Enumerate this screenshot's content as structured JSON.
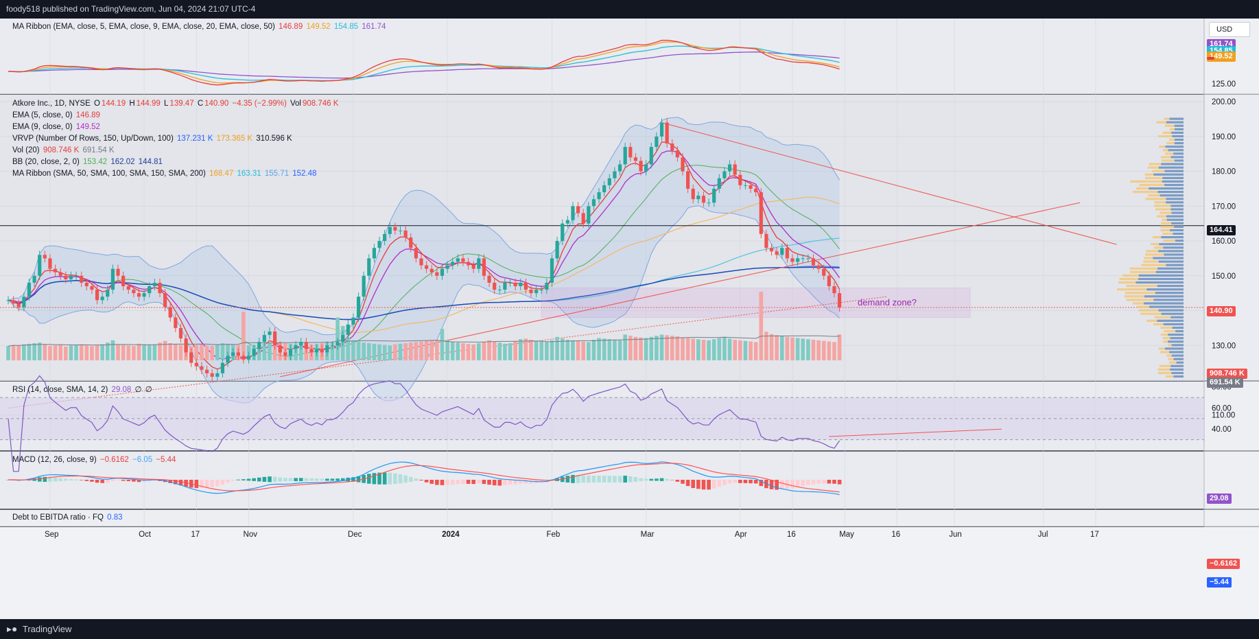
{
  "header": {
    "publisher": "foody518 published on TradingView.com, Jun 04, 2024 21:07 UTC-4"
  },
  "footer": {
    "brand": "TradingView"
  },
  "currency_button": "USD",
  "legends": {
    "ma_ribbon_ema": {
      "title": "MA Ribbon (EMA, close, 5, EMA, close, 9, EMA, close, 20, EMA, close, 50)",
      "v1": "146.89",
      "v2": "149.52",
      "v3": "154.85",
      "v4": "161.74"
    },
    "symbol": {
      "title": "Atkore Inc., 1D, NYSE",
      "o_lbl": "O",
      "o": "144.19",
      "h_lbl": "H",
      "h": "144.99",
      "l_lbl": "L",
      "l": "139.47",
      "c_lbl": "C",
      "c": "140.90",
      "chg": "−4.35 (−2.99%)",
      "vol_lbl": "Vol",
      "vol": "908.746 K"
    },
    "ema5": {
      "title": "EMA (5, close, 0)",
      "v": "146.89"
    },
    "ema9": {
      "title": "EMA (9, close, 0)",
      "v": "149.52"
    },
    "vrvp": {
      "title": "VRVP (Number Of Rows, 150, Up/Down, 100)",
      "v1": "137.231 K",
      "v2": "173.365 K",
      "v3": "310.596 K"
    },
    "vol20": {
      "title": "Vol (20)",
      "v1": "908.746 K",
      "v2": "691.54 K"
    },
    "bb": {
      "title": "BB (20, close, 2, 0)",
      "v1": "153.42",
      "v2": "162.02",
      "v3": "144.81"
    },
    "ma_ribbon_sma": {
      "title": "MA Ribbon (SMA, 50, SMA, 100, SMA, 150, SMA, 200)",
      "v1": "168.47",
      "v2": "163.31",
      "v3": "155.71",
      "v4": "152.48"
    },
    "rsi": {
      "title": "RSI (14, close, SMA, 14, 2)",
      "v1": "29.08",
      "v2": "∅",
      "v3": "∅"
    },
    "macd": {
      "title": "MACD (12, 26, close, 9)",
      "v1": "−0.6162",
      "v2": "−6.05",
      "v3": "−5.44"
    },
    "debt": {
      "title": "Debt to EBITDA ratio · FQ",
      "v": "0.83"
    }
  },
  "annotation": "demand zone?",
  "axis_tags": {
    "top_161": "161.74",
    "top_154": "154.85",
    "top_149": "149.52",
    "top_146": "146.89",
    "main_164": "164.41",
    "main_140": "140.90",
    "vol_908": "908.746 K",
    "vol_691": "691.54 K",
    "rsi_29": "29.08",
    "macd_0616": "−0.6162",
    "macd_544": "−5.44"
  },
  "colors": {
    "up": "#26a69a",
    "down": "#ef5350",
    "bg_pane": "#e9ebf0",
    "grid": "#d6d9e0"
  },
  "chart_data": [
    {
      "type": "line",
      "title": "MA Ribbon (EMA, close, 5, EMA, close, 9, EMA, close, 20, EMA, close, 50)",
      "y_ticks": [
        "125.00"
      ],
      "series": [
        {
          "name": "EMA 5",
          "last": 146.89
        },
        {
          "name": "EMA 9",
          "last": 149.52
        },
        {
          "name": "EMA 20",
          "last": 154.85
        },
        {
          "name": "EMA 50",
          "last": 161.74
        }
      ]
    },
    {
      "type": "candlestick",
      "title": "Atkore Inc., 1D, NYSE",
      "y_ticks": [
        "200.00",
        "190.00",
        "180.00",
        "170.00",
        "160.00",
        "150.00",
        "140.00",
        "130.00",
        "120.00",
        "110.00"
      ],
      "ylim": [
        106,
        202
      ],
      "x_ticks": [
        "Sep",
        "Oct",
        "17",
        "Nov",
        "Dec",
        "2024",
        "Feb",
        "Mar",
        "Apr",
        "16",
        "May",
        "16",
        "Jun",
        "Jul",
        "17"
      ],
      "x_index_of_ticks": [
        8,
        26,
        36,
        46,
        66,
        84,
        104,
        122,
        140,
        150,
        160,
        170,
        181,
        198,
        208
      ],
      "closes": [
        143,
        142,
        141,
        144,
        148,
        150,
        156,
        155,
        152,
        151,
        150,
        149,
        150,
        150,
        148,
        147,
        146,
        143,
        144,
        146,
        152,
        150,
        147,
        146,
        145,
        144,
        145,
        147,
        148,
        145,
        141,
        138,
        135,
        132,
        128,
        125,
        124,
        123,
        122,
        121,
        122,
        125,
        127,
        128,
        127,
        126,
        127,
        129,
        131,
        133,
        134,
        130,
        128,
        127,
        129,
        130,
        131,
        129,
        128,
        129,
        128,
        130,
        130,
        131,
        133,
        136,
        138,
        144,
        150,
        155,
        158,
        160,
        162,
        164,
        163,
        163,
        161,
        158,
        155,
        153,
        152,
        151,
        150,
        152,
        153,
        154,
        155,
        154,
        153,
        152,
        155,
        150,
        148,
        146,
        146,
        148,
        148,
        147,
        148,
        146,
        145,
        146,
        146,
        148,
        155,
        160,
        165,
        166,
        170,
        168,
        165,
        170,
        172,
        174,
        176,
        178,
        180,
        182,
        187,
        184,
        183,
        180,
        182,
        187,
        190,
        194,
        188,
        186,
        184,
        180,
        175,
        172,
        173,
        171,
        171,
        175,
        178,
        180,
        182,
        179,
        176,
        176,
        175,
        174,
        162,
        158,
        157,
        156,
        158,
        155,
        154,
        155,
        155,
        155,
        153,
        152,
        150,
        147,
        145,
        140.9
      ],
      "volume_k": [
        500,
        540,
        520,
        560,
        580,
        600,
        620,
        560,
        500,
        520,
        540,
        480,
        520,
        530,
        560,
        520,
        500,
        540,
        560,
        620,
        700,
        560,
        540,
        520,
        500,
        580,
        560,
        540,
        560,
        620,
        680,
        600,
        560,
        540,
        520,
        500,
        540,
        560,
        520,
        500,
        560,
        600,
        580,
        560,
        540,
        1700,
        520,
        540,
        560,
        580,
        600,
        620,
        640,
        600,
        580,
        560,
        540,
        520,
        560,
        580,
        600,
        620,
        640,
        1500,
        1200,
        800,
        700,
        650,
        620,
        600,
        580,
        560,
        540,
        520,
        560,
        580,
        600,
        620,
        640,
        660,
        680,
        700,
        720,
        1100,
        700,
        650,
        620,
        600,
        580,
        560,
        600,
        640,
        700,
        660,
        620,
        580,
        600,
        680,
        740,
        760,
        720,
        680,
        660,
        640,
        700,
        820,
        760,
        720,
        700,
        680,
        660,
        640,
        720,
        780,
        760,
        740,
        720,
        700,
        900,
        860,
        820,
        800,
        780,
        820,
        860,
        900,
        880,
        860,
        840,
        800,
        780,
        760,
        740,
        720,
        700,
        740,
        780,
        820,
        760,
        720,
        700,
        680,
        660,
        640,
        2400,
        1000,
        920,
        880,
        840,
        820,
        800,
        780,
        760,
        740,
        720,
        700,
        680,
        660,
        640,
        908.746
      ],
      "vol20_last_k": 691.54,
      "annotations": [
        "demand zone?"
      ],
      "horizontal_levels": [
        164.41,
        140.9
      ]
    },
    {
      "type": "line",
      "title": "RSI (14, close, SMA, 14, 2)",
      "y_ticks": [
        "80.00",
        "60.00",
        "40.00"
      ],
      "ylim": [
        20,
        85
      ],
      "last": 29.08
    },
    {
      "type": "bar",
      "title": "MACD (12, 26, close, 9)",
      "last_macd": -6.05,
      "last_signal": -5.44,
      "last_hist": -0.6162
    }
  ]
}
